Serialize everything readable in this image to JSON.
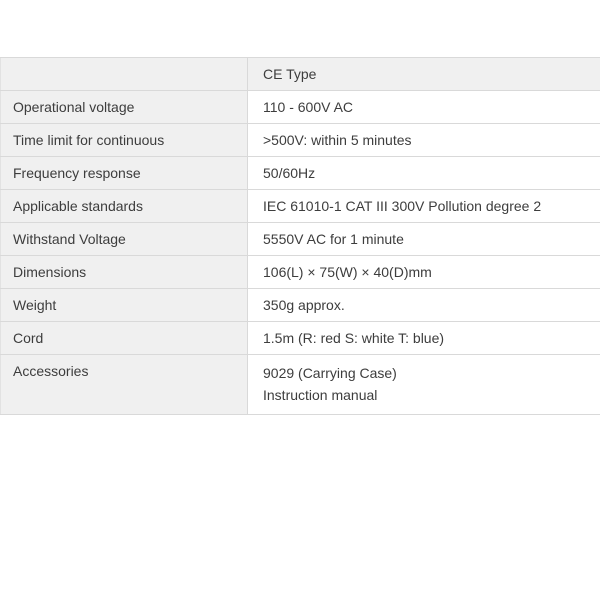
{
  "table": {
    "header": {
      "label": "",
      "value": "CE Type"
    },
    "rows": [
      {
        "label": "Operational voltage",
        "value": "110 - 600V AC"
      },
      {
        "label": "Time limit for continuous",
        "value": ">500V: within 5 minutes"
      },
      {
        "label": "Frequency response",
        "value": "50/60Hz"
      },
      {
        "label": "Applicable standards",
        "value": "IEC 61010-1 CAT III 300V Pollution degree 2"
      },
      {
        "label": "Withstand Voltage",
        "value": "5550V AC for 1 minute"
      },
      {
        "label": "Dimensions",
        "value": "106(L) × 75(W) × 40(D)mm"
      },
      {
        "label": "Weight",
        "value": "350g approx."
      },
      {
        "label": "Cord",
        "value": "1.5m (R: red S: white T: blue)"
      },
      {
        "label": "Accessories",
        "lines": [
          "9029 (Carrying Case)",
          "Instruction manual"
        ]
      }
    ],
    "colors": {
      "cell_background": "#f0f0f0",
      "border": "#d9d9d9",
      "text": "#3d3d3d",
      "page_background": "#ffffff"
    }
  }
}
